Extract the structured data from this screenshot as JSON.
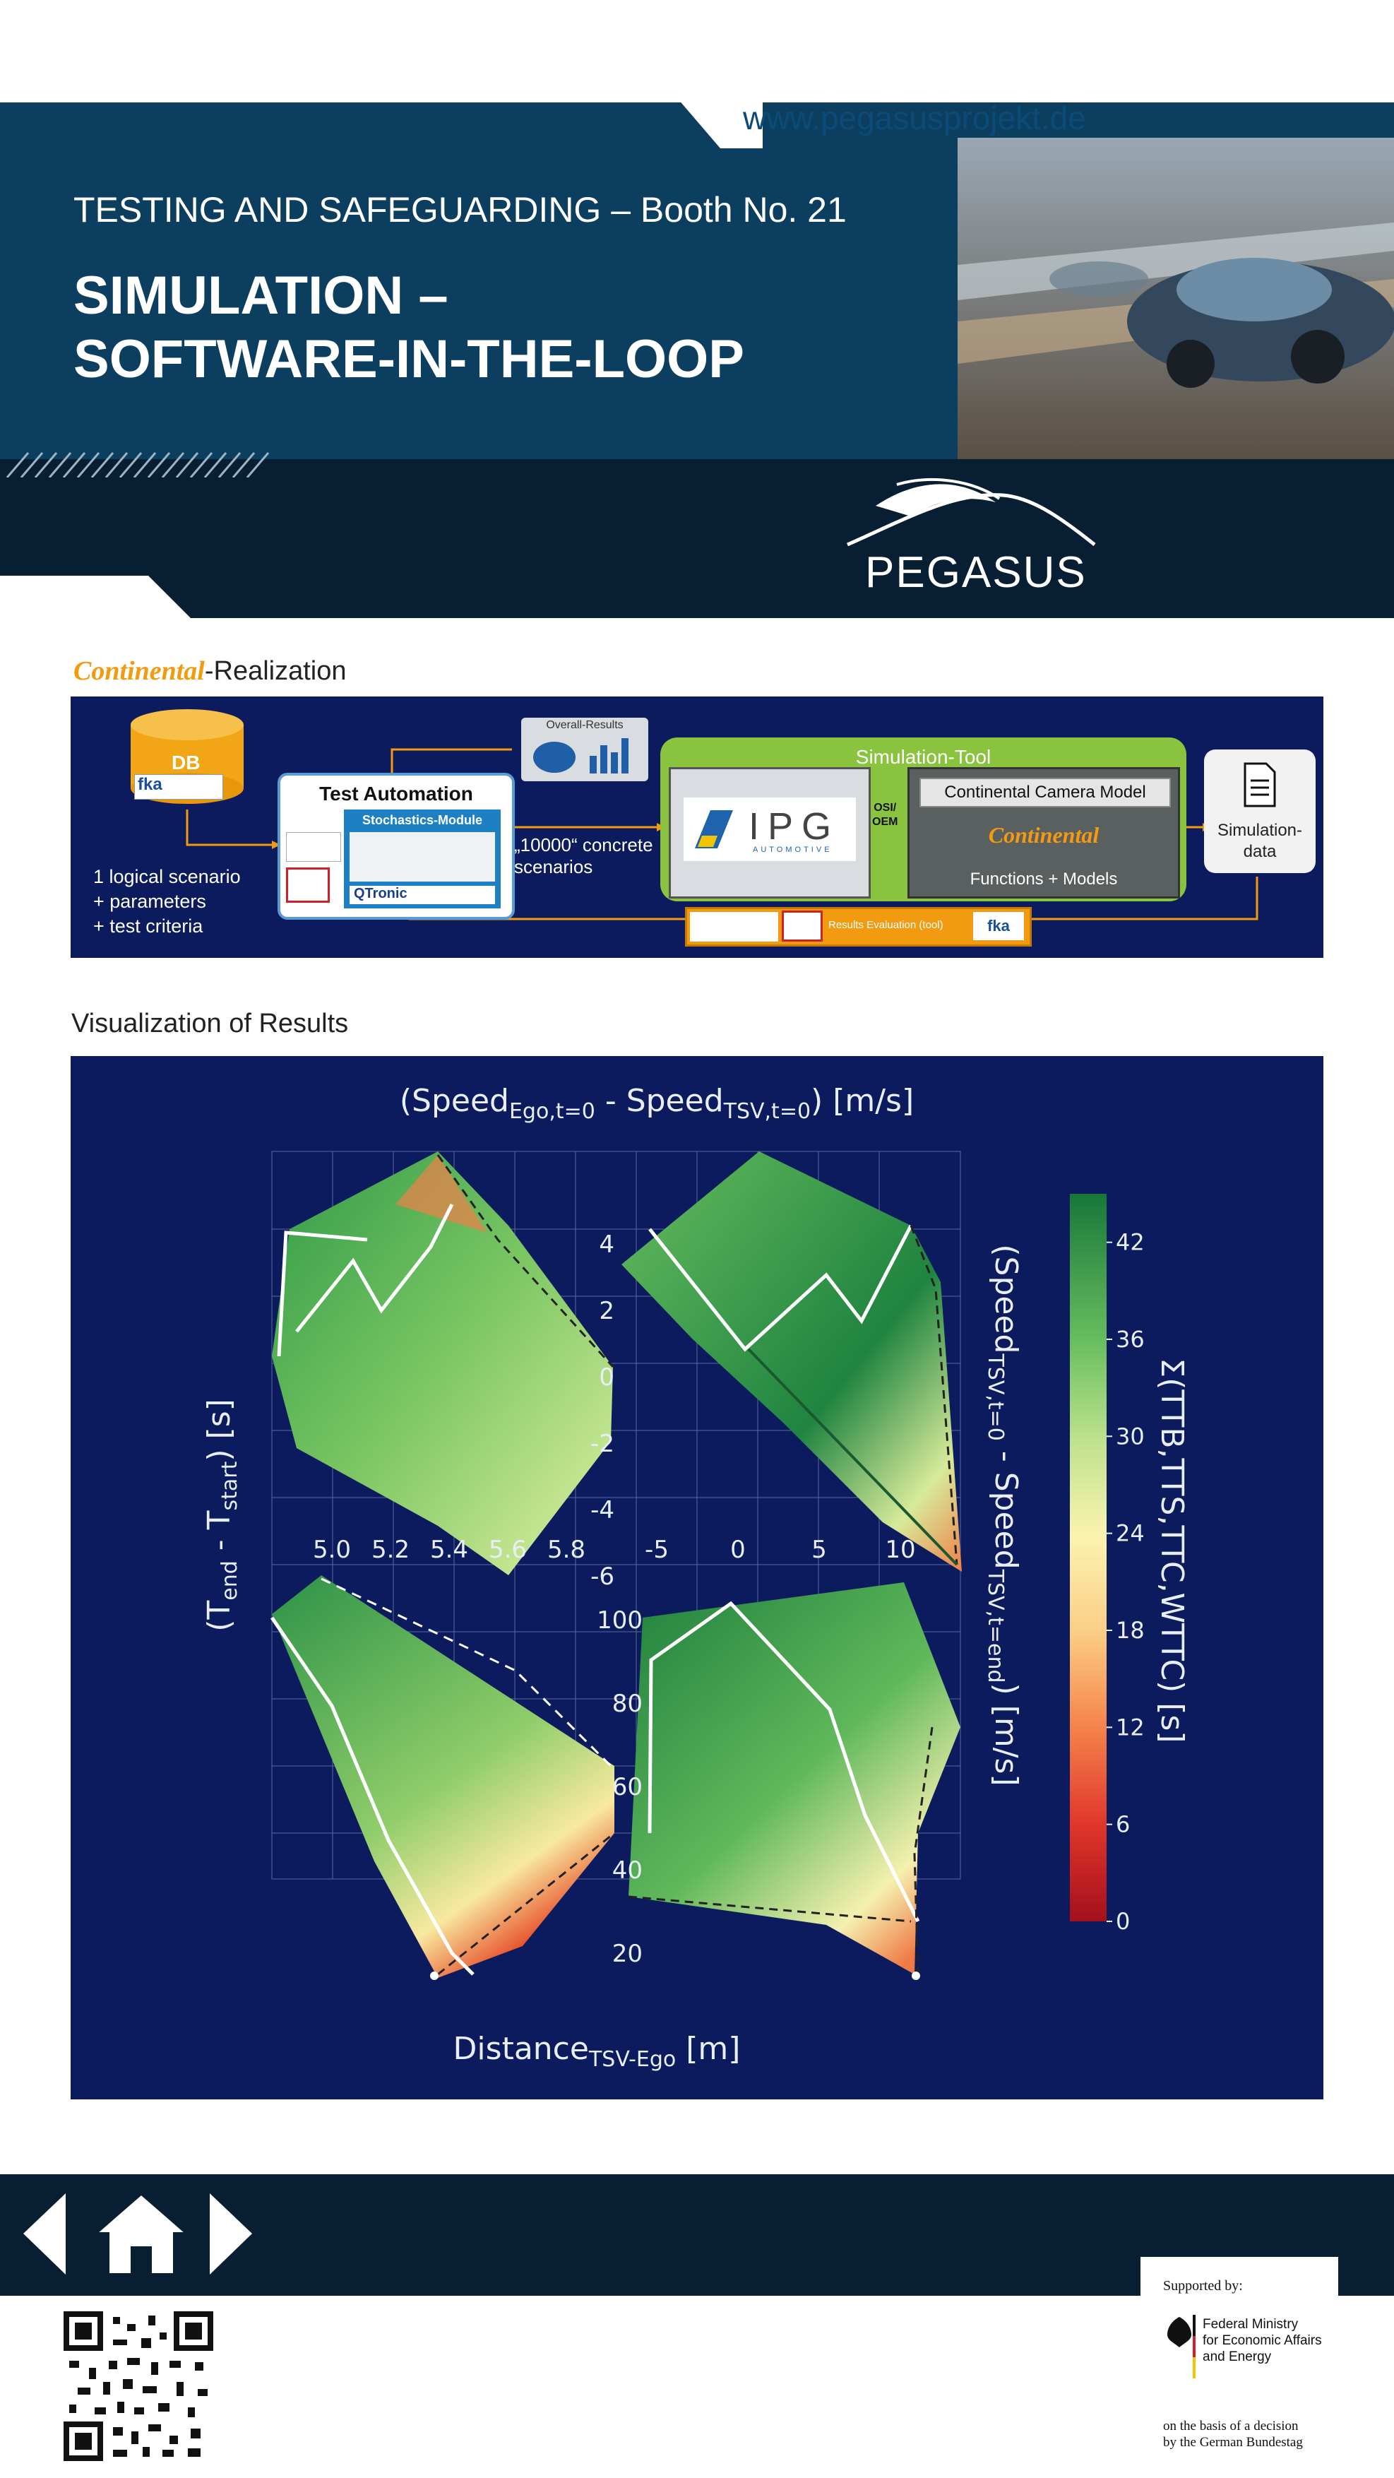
{
  "header": {
    "url": "www.pegasusprojekt.de",
    "subtitle": "TESTING AND SAFEGUARDING – Booth No. 21",
    "title_line1": "SIMULATION –",
    "title_line2": "SOFTWARE-IN-THE-LOOP",
    "logo": "PEGASUS"
  },
  "realization": {
    "brand": "Continental",
    "label_suffix": "-Realization",
    "db": "DB",
    "db_fka": "fka",
    "overall_results": "Overall-Results",
    "test_automation": "Test Automation",
    "stochastics_module": "Stochastics-Module",
    "qtronic": "QTronic",
    "inputs": [
      "1 logical scenario",
      "+ parameters",
      "+ test criteria"
    ],
    "concrete_scenarios_1": "„10000“ concrete",
    "concrete_scenarios_2": "scenarios",
    "simulation_tool": "Simulation-Tool",
    "ipg": "IPG",
    "ipg_sub": "AUTOMOTIVE",
    "osi": "OSI/",
    "oem": "OEM",
    "camera_model": "Continental Camera Model",
    "functions_models": "Functions + Models",
    "simulation_data_1": "Simulation-",
    "simulation_data_2": "data",
    "results_evaluation": "Results Evaluation (tool)",
    "results_fka": "fka"
  },
  "visualization": {
    "label": "Visualization of Results",
    "colors": {
      "panel_bg": "#0b1b5e",
      "dark_green": "#1a7a3a",
      "light_yellow": "#fbf3b0",
      "red": "#b8141e"
    }
  },
  "chart_data": {
    "type": "heatmap",
    "title": {
      "base": "(Speed",
      "sub1": "Ego,t=0",
      "mid": " - Speed",
      "sub2": "TSV,t=0",
      "end": ") [m/s]"
    },
    "xlabel": {
      "base": "Distance",
      "sub": "TSV-Ego",
      "end": " [m]"
    },
    "ylabel": {
      "base": "(T",
      "sub1": "end",
      "mid": " - T",
      "sub2": "start",
      "end": ") [s]"
    },
    "y2label": {
      "base": "(Speed",
      "sub1": "TSV,t=0",
      "mid": " - Speed",
      "sub2": "TSV,t=end",
      "end": ") [m/s]"
    },
    "colorbar": {
      "label": "Σ(TTB,TTS,TTC,WTTC) [s]",
      "ticks": [
        0,
        6,
        12,
        18,
        24,
        30,
        36,
        42
      ],
      "range": [
        0,
        45
      ]
    },
    "top_left_x_ticks": [
      "5.0",
      "5.2",
      "5.4",
      "5.6",
      "5.8"
    ],
    "top_center_y_ticks": [
      "4",
      "2",
      "0",
      "-2",
      "-4",
      "-6"
    ],
    "top_right_x_ticks": [
      "-5",
      "0",
      "5",
      "10"
    ],
    "bottom_center_y_ticks": [
      "100",
      "80",
      "60",
      "40",
      "20"
    ]
  },
  "footer": {
    "supported_by": "Supported by:",
    "ministry_1": "Federal Ministry",
    "ministry_2": "for Economic Affairs",
    "ministry_3": "and Energy",
    "decision_1": "on the basis of a decision",
    "decision_2": "by the German Bundestag"
  }
}
